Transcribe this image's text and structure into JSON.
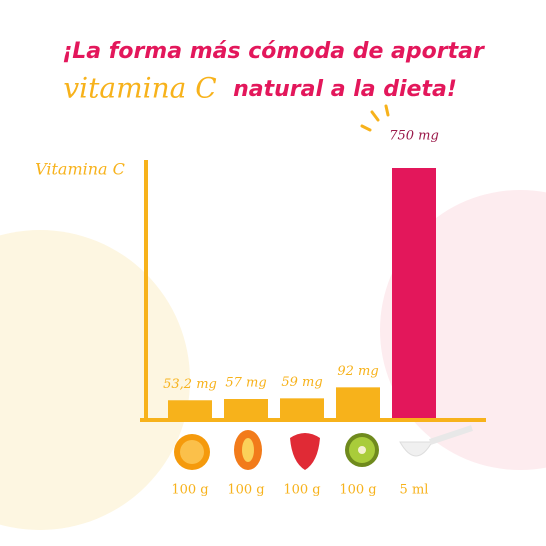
{
  "chart_data": {
    "type": "bar",
    "title": "¡La forma más cómoda de aportar",
    "title_highlight": "vitamina C",
    "title_rest": "natural a la dieta!",
    "y_label": "Vitamina C",
    "categories": [
      "100 g",
      "100 g",
      "100 g",
      "100 g",
      "5 ml"
    ],
    "values": [
      53.2,
      57,
      59,
      92,
      750
    ],
    "value_labels": [
      "53,2 mg",
      "57 mg",
      "59 mg",
      "92 mg",
      "750 mg"
    ],
    "colors": [
      "#f7b21b",
      "#f7b21b",
      "#f7b21b",
      "#f7b21b",
      "#e3175b"
    ],
    "ylim": [
      0,
      750
    ]
  }
}
